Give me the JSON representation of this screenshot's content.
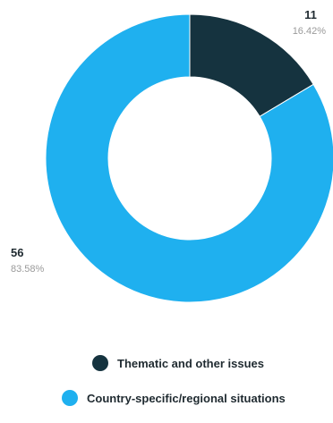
{
  "chart_data": {
    "type": "pie",
    "donut": true,
    "series": [
      {
        "name": "Thematic and other issues",
        "value": 11,
        "percent": "16.42%",
        "color": "#15333f"
      },
      {
        "name": "Country-specific/regional situations",
        "value": 56,
        "percent": "83.58%",
        "color": "#1fb0ef"
      }
    ],
    "labels": [
      {
        "value_text": "11",
        "percent_text": "16.42%"
      },
      {
        "value_text": "56",
        "percent_text": "83.58%"
      }
    ],
    "legend": "bottom"
  }
}
